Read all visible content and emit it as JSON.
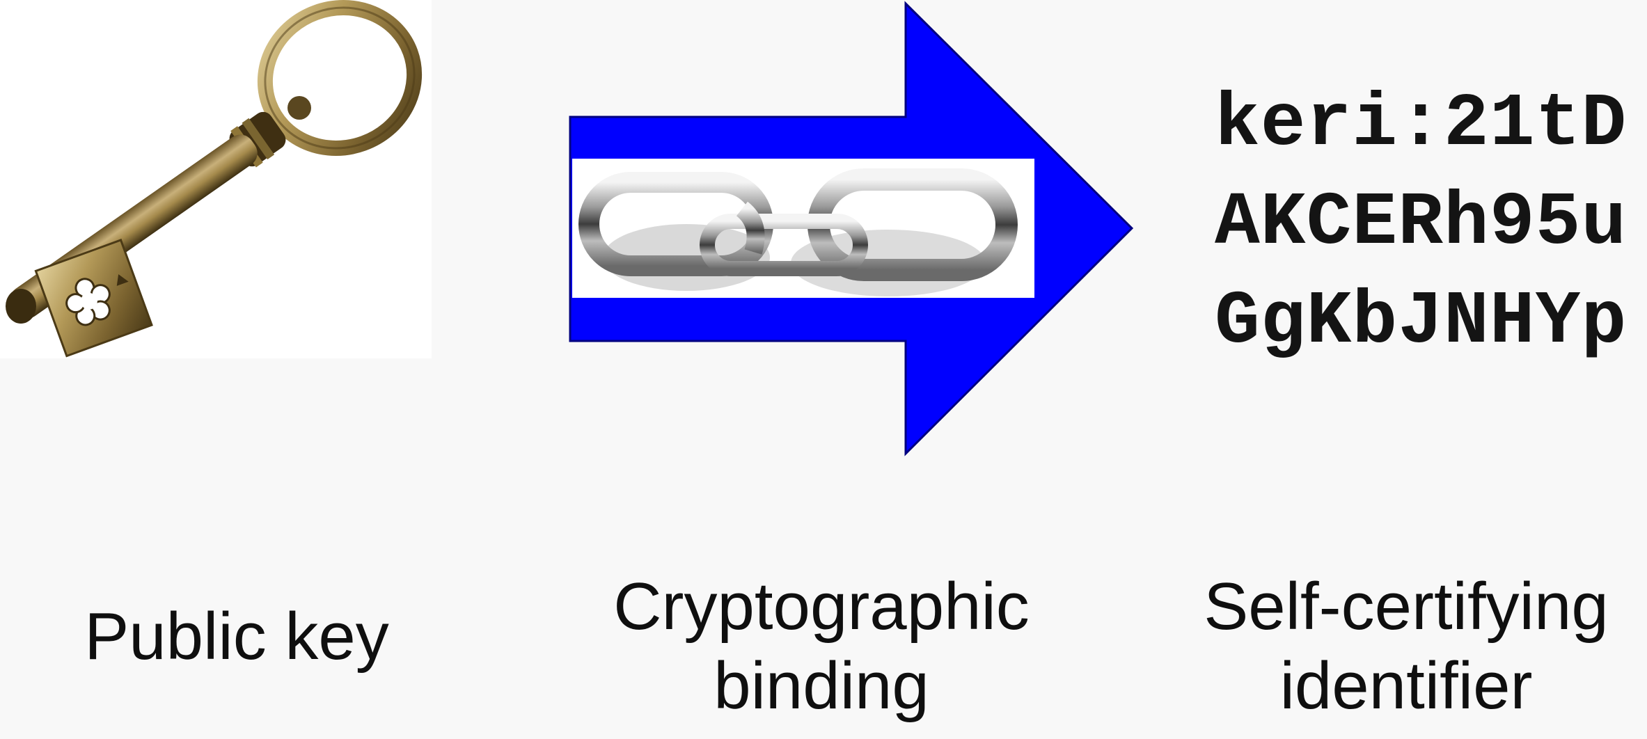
{
  "identifier": {
    "lines": [
      "keri:21tD",
      "AKCERh95u",
      "GgKbJNHYp"
    ]
  },
  "captions": {
    "key": "Public key",
    "binding": "Cryptographic\nbinding",
    "identifier": "Self-certifying\nidentifier"
  },
  "icons": {
    "key": "antique-key-icon",
    "arrow": "arrow-icon",
    "chain": "chain-link-icon"
  },
  "colors": {
    "background": "#f8f8f8",
    "arrow": "#0000ff",
    "key_brass": "#a48a4e",
    "text": "#111111"
  }
}
